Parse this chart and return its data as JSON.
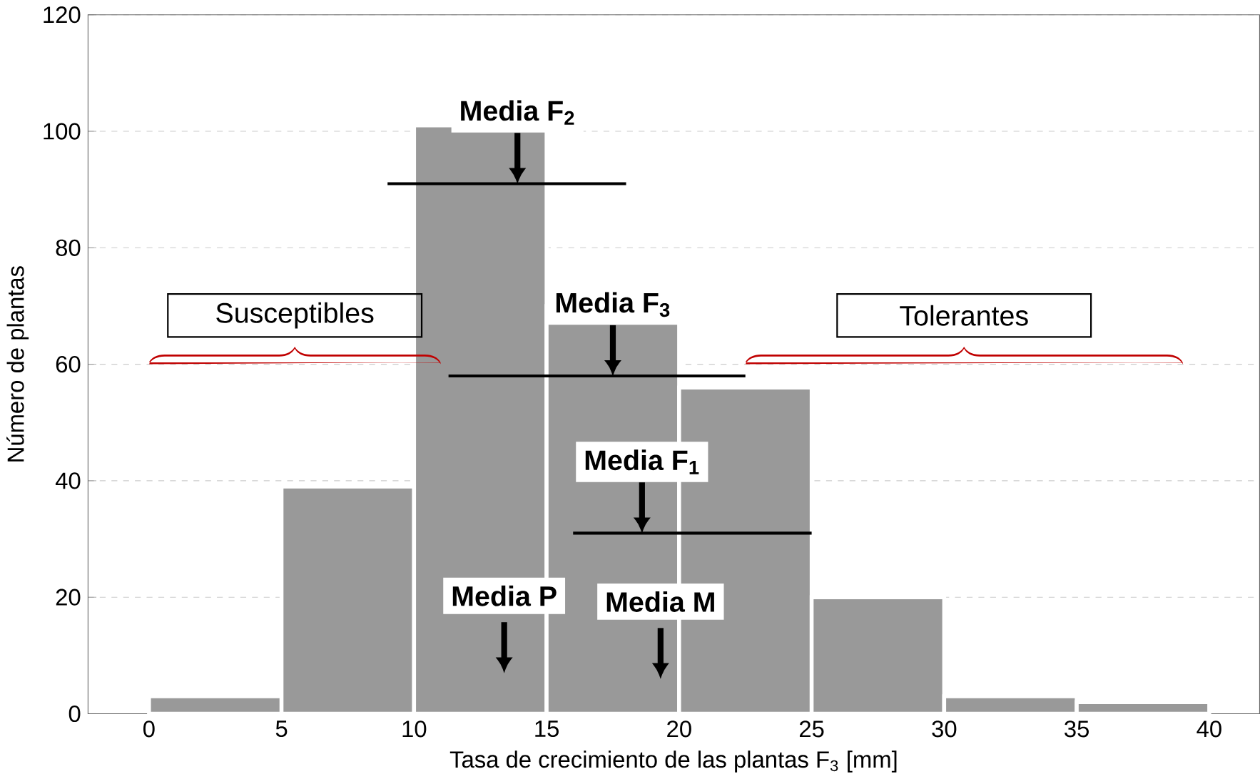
{
  "chart_data": {
    "type": "histogram",
    "xlabel": "Tasa de crecimiento de las plantas F$_{3}$ [mm]",
    "ylabel": "Número de plantas",
    "bins": [
      0,
      5,
      10,
      15,
      20,
      25,
      30,
      35,
      40
    ],
    "values": [
      3,
      39,
      101,
      70,
      56,
      20,
      3,
      2
    ],
    "color": "#999999",
    "xlim": [
      -2.3,
      41.9
    ],
    "ylim": [
      0,
      120
    ],
    "xticks": [
      0,
      5,
      10,
      15,
      20,
      25,
      30,
      35,
      40
    ],
    "yticks": [
      0,
      20,
      40,
      60,
      80,
      100,
      120
    ],
    "grid": "y",
    "series": [
      {
        "type": "line",
        "color": "#000000",
        "x": [
          9,
          18
        ],
        "values": [
          91,
          91
        ]
      },
      {
        "type": "line",
        "color": "#000000",
        "x": [
          11.3,
          22.5
        ],
        "values": [
          58,
          58
        ]
      },
      {
        "type": "line",
        "color": "#000000",
        "x": [
          16,
          25
        ],
        "values": [
          31,
          31
        ]
      }
    ],
    "annotations": [
      {
        "text": "Media F$_{2}$",
        "x": 13.9,
        "y": 91
      },
      {
        "text": "Media F$_{3}$",
        "x": 17.5,
        "y": 58
      },
      {
        "text": "Media F$_{1}$",
        "x": 18.6,
        "y": 31
      },
      "Media P",
      "Media M",
      "Susceptibles",
      "Tolerantes"
    ]
  }
}
